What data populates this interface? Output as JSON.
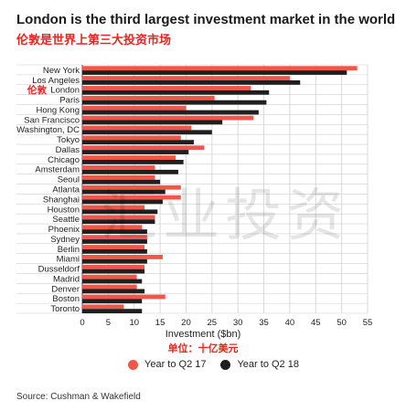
{
  "title": "London is the third largest investment market in the world",
  "subtitle": "伦敦是世界上第三大投资市场",
  "watermark_text": "汇业投资",
  "source": "Source: Cushman & Wakefield",
  "chart_data": {
    "type": "bar",
    "orientation": "horizontal",
    "categories": [
      "New York",
      "Los Angeles",
      "London",
      "Paris",
      "Hong Kong",
      "San Francisco",
      "Washington, DC",
      "Tokyo",
      "Dallas",
      "Chicago",
      "Amsterdam",
      "Seoul",
      "Atlanta",
      "Shanghai",
      "Houston",
      "Seattle",
      "Phoenix",
      "Sydney",
      "Berlin",
      "Miami",
      "Dusseldorf",
      "Madrid",
      "Denver",
      "Boston",
      "Toronto"
    ],
    "category_annotation": {
      "index": 2,
      "text": "伦敦",
      "color": "#e8251f"
    },
    "series": [
      {
        "name": "Year to Q2 17",
        "color": "#f0564a",
        "values": [
          53,
          40,
          32.5,
          25.5,
          20,
          33,
          21,
          19,
          23.5,
          18,
          14,
          14,
          19,
          19,
          12,
          14,
          11.5,
          12.5,
          12,
          15.5,
          12,
          10.5,
          10.5,
          16,
          8
        ]
      },
      {
        "name": "Year to Q2 18",
        "color": "#1f1f1f",
        "values": [
          51,
          42,
          36,
          35.5,
          34,
          27,
          25,
          21.5,
          20.5,
          19.5,
          18.5,
          15,
          16,
          15.5,
          14.5,
          14,
          12.5,
          12.5,
          12.5,
          12.5,
          12,
          11.5,
          12,
          11.5,
          11.5
        ]
      }
    ],
    "xlim": [
      0,
      55
    ],
    "xticks": [
      0,
      5,
      10,
      15,
      20,
      25,
      30,
      35,
      40,
      45,
      50,
      55
    ],
    "xlabel": "Investment ($bn)",
    "xlabel_cn": "单位：十亿美元",
    "grid": true,
    "legend_position": "bottom"
  }
}
